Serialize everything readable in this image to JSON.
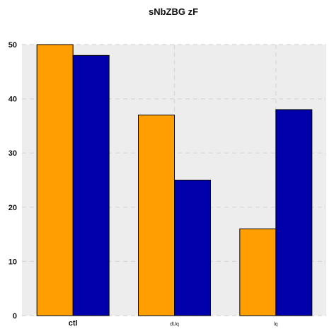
{
  "chart_data": {
    "type": "bar",
    "title": "sNbZBG zF",
    "categories": [
      "ctl",
      "dUq",
      "lq"
    ],
    "series": [
      {
        "values": [
          50,
          37,
          16
        ],
        "color": "#ff9e00"
      },
      {
        "values": [
          48,
          25,
          38
        ],
        "color": "#0000aa"
      }
    ],
    "ylim": [
      0,
      50
    ],
    "yticks": [
      0,
      10,
      20,
      30,
      40,
      50
    ],
    "grid": true,
    "background": "#ededed"
  }
}
